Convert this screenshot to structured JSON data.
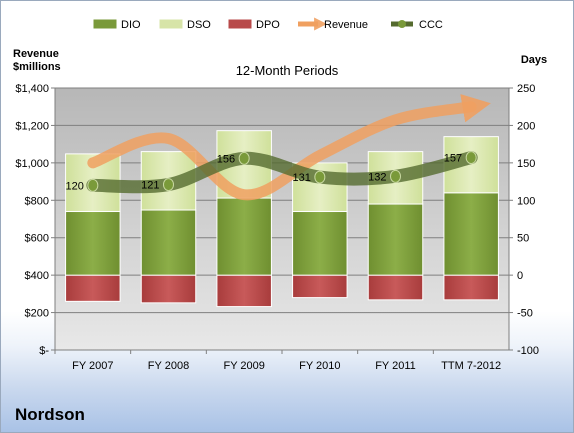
{
  "chart_data": {
    "type": "bar",
    "title": "12-Month Periods",
    "company": "Nordson",
    "categories": [
      "FY 2007",
      "FY 2008",
      "FY 2009",
      "FY 2010",
      "FY 2011",
      "TTM 7-2012"
    ],
    "y_left": {
      "label_line1": "Revenue",
      "label_line2": "$millions",
      "range": [
        0,
        1400
      ],
      "ticks": [
        0,
        200,
        400,
        600,
        800,
        1000,
        1200,
        1400
      ],
      "tick_labels": [
        "$-",
        "$200",
        "$400",
        "$600",
        "$800",
        "$1,000",
        "$1,200",
        "$1,400"
      ]
    },
    "y_right": {
      "label": "Days",
      "range": [
        -100,
        250
      ],
      "ticks": [
        -100,
        -50,
        0,
        50,
        100,
        150,
        200,
        250
      ],
      "tick_labels": [
        "-100",
        "-50",
        "0",
        "50",
        "100",
        "150",
        "200",
        "250"
      ]
    },
    "grid": true,
    "legend": {
      "position": "top",
      "items": [
        {
          "name": "DIO",
          "color": "#7a9a3a"
        },
        {
          "name": "DSO",
          "color": "#d7e4a8"
        },
        {
          "name": "DPO",
          "color": "#b84a4a"
        },
        {
          "name": "Revenue",
          "color": "#f0a060"
        },
        {
          "name": "CCC",
          "color": "#5a7a2a"
        }
      ]
    },
    "series": [
      {
        "name": "DIO",
        "axis": "right",
        "values": [
          85,
          87,
          103,
          85,
          95,
          110
        ]
      },
      {
        "name": "DSO",
        "axis": "right",
        "values": [
          77,
          78,
          90,
          65,
          70,
          75
        ]
      },
      {
        "name": "DPO",
        "axis": "right",
        "values": [
          -35,
          -37,
          -42,
          -30,
          -33,
          -33
        ]
      },
      {
        "name": "Revenue",
        "axis": "left",
        "values": [
          1000,
          1130,
          830,
          1040,
          1230,
          1300
        ]
      },
      {
        "name": "CCC",
        "axis": "right",
        "values": [
          120,
          121,
          156,
          131,
          132,
          157
        ],
        "data_labels": [
          "120",
          "121",
          "156",
          "131",
          "132",
          "157"
        ]
      }
    ]
  }
}
